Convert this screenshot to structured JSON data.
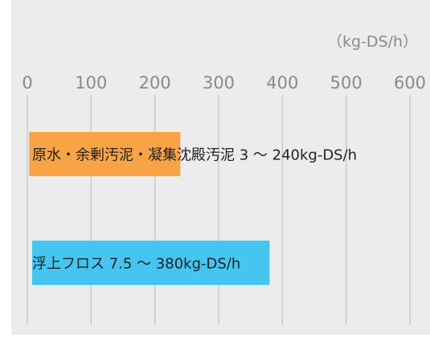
{
  "chart_data": {
    "type": "bar",
    "orientation": "horizontal",
    "unit": "（kg-DS/h）",
    "xlim": [
      0,
      600
    ],
    "x_ticks": [
      "0",
      "100",
      "200",
      "300",
      "400",
      "500",
      "600"
    ],
    "grid": true,
    "categories": [
      "原水・余剰汚泥・凝集沈殿汚泥",
      "浮上フロス"
    ],
    "bars": [
      {
        "category": "原水・余剰汚泥・凝集沈殿汚泥",
        "min": 3,
        "max": 240,
        "label": "原水・余剰汚泥・凝集沈殿汚泥 3 ～ 240kg-DS/h",
        "color": "#F7A346"
      },
      {
        "category": "浮上フロス",
        "min": 7.5,
        "max": 380,
        "label": "浮上フロス 7.5 ～ 380kg-DS/h",
        "color": "#45C5EF"
      }
    ],
    "colors": {
      "background": "#ECECEC",
      "grid": "#C6C6C6",
      "tick_text": "#8A8A8A",
      "label_text": "#222222"
    }
  }
}
